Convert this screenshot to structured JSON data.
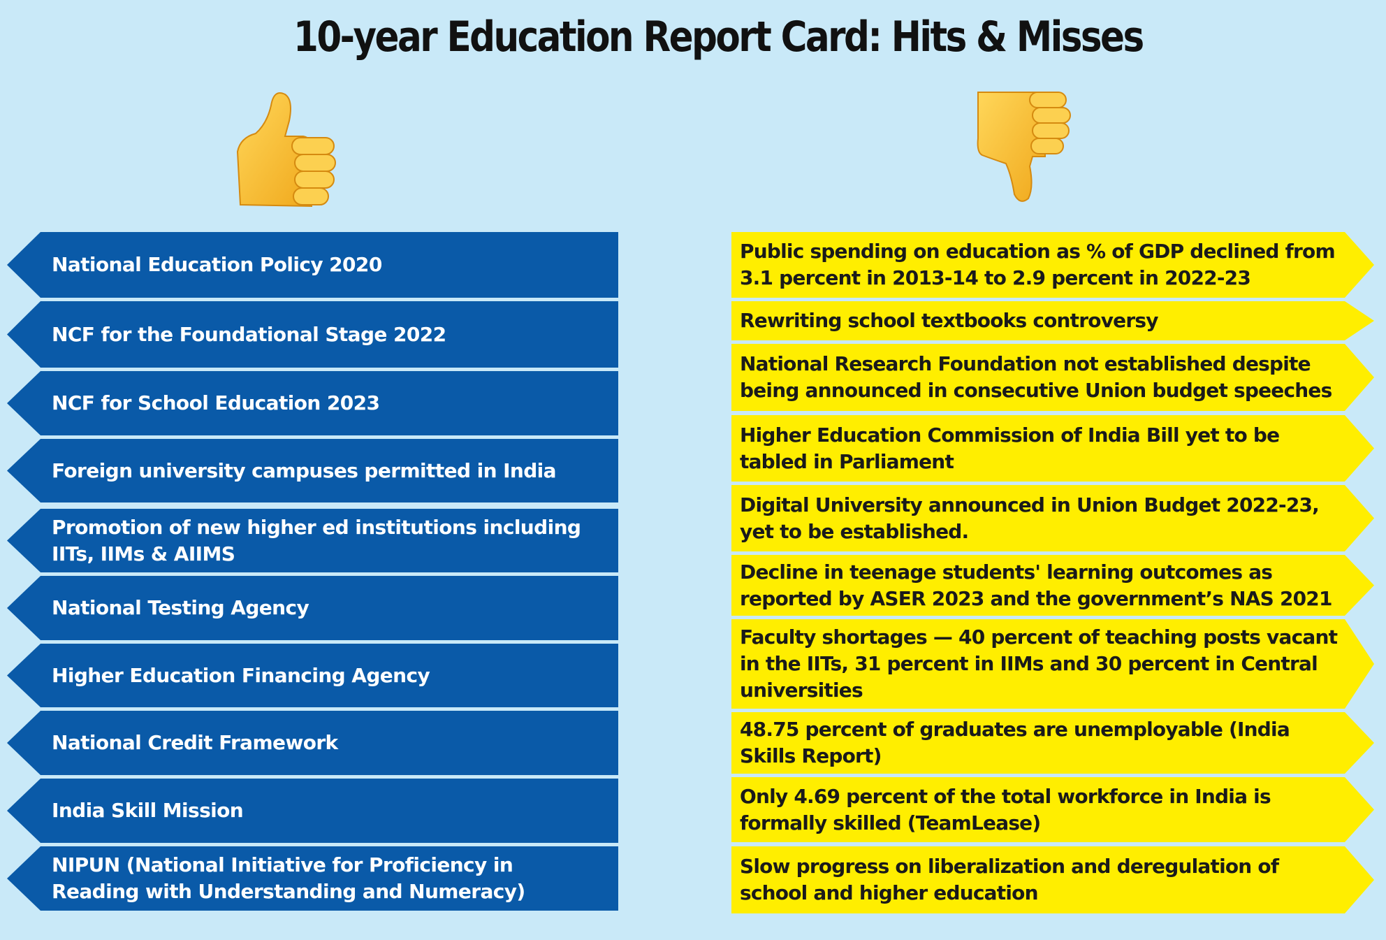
{
  "title": "10-year Education Report Card: Hits & Misses",
  "icons": {
    "hits": "thumbs-up-icon",
    "misses": "thumbs-down-icon"
  },
  "colors": {
    "background": "#c9e9f8",
    "hits": "#0a5aa8",
    "misses": "#ffee00"
  },
  "hits": [
    {
      "label": "National Education Policy 2020"
    },
    {
      "label": "NCF for the Foundational Stage 2022"
    },
    {
      "label": "NCF for School Education 2023"
    },
    {
      "label": "Foreign university campuses permitted in India"
    },
    {
      "label": "Promotion of new higher ed institutions including IITs, IIMs & AIIMS"
    },
    {
      "label": "National Testing Agency"
    },
    {
      "label": "Higher Education Financing Agency"
    },
    {
      "label": "National Credit Framework"
    },
    {
      "label": "India Skill Mission"
    },
    {
      "label": "NIPUN (National Initiative for Proficiency in Reading with Understanding and Numeracy)"
    }
  ],
  "misses": [
    {
      "label": "Public spending on education as % of GDP declined from 3.1 percent in 2013-14 to 2.9 percent in 2022-23"
    },
    {
      "label": "Rewriting school textbooks controversy"
    },
    {
      "label": "National Research Foundation not established despite being announced in consecutive Union budget speeches"
    },
    {
      "label": "Higher Education Commission of India Bill yet to be tabled in Parliament"
    },
    {
      "label": "Digital University announced in Union Budget 2022-23, yet to be established."
    },
    {
      "label": "Decline in teenage students' learning outcomes as reported by ASER 2023 and the government’s NAS 2021"
    },
    {
      "label": "Faculty shortages — 40 percent of teaching posts vacant in the IITs, 31 percent in IIMs and 30 percent in Central universities"
    },
    {
      "label": "48.75 percent of graduates are unemployable (India Skills Report)"
    },
    {
      "label": "Only 4.69 percent of the total workforce in India is formally skilled (TeamLease)"
    },
    {
      "label": "Slow progress on liberalization and deregulation of school and higher education"
    }
  ]
}
